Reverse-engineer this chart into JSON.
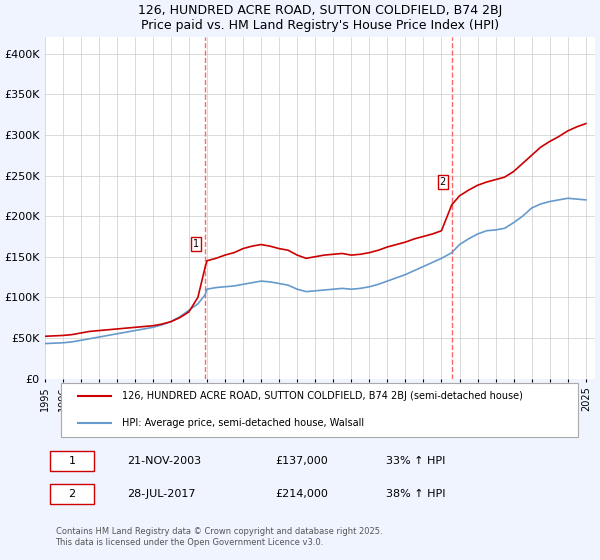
{
  "title_line1": "126, HUNDRED ACRE ROAD, SUTTON COLDFIELD, B74 2BJ",
  "title_line2": "Price paid vs. HM Land Registry's House Price Index (HPI)",
  "ylabel": "",
  "xlim_start": 1995.0,
  "xlim_end": 2025.5,
  "ylim_min": 0,
  "ylim_max": 420000,
  "yticks": [
    0,
    50000,
    100000,
    150000,
    200000,
    250000,
    300000,
    350000,
    400000
  ],
  "ytick_labels": [
    "£0",
    "£50K",
    "£100K",
    "£150K",
    "£200K",
    "£250K",
    "£300K",
    "£350K",
    "£400K"
  ],
  "background_color": "#f0f4ff",
  "plot_bg_color": "#ffffff",
  "red_line_color": "#cc0000",
  "blue_line_color": "#6699cc",
  "vline_color": "#ff6666",
  "purchase1_x": 2003.9,
  "purchase1_y": 137000,
  "purchase1_label": "1",
  "purchase2_x": 2017.57,
  "purchase2_y": 214000,
  "purchase2_label": "2",
  "legend_label_red": "126, HUNDRED ACRE ROAD, SUTTON COLDFIELD, B74 2BJ (semi-detached house)",
  "legend_label_blue": "HPI: Average price, semi-detached house, Walsall",
  "annotation1_box_label": "1",
  "annotation1_date": "21-NOV-2003",
  "annotation1_price": "£137,000",
  "annotation1_hpi": "33% ↑ HPI",
  "annotation2_box_label": "2",
  "annotation2_date": "28-JUL-2017",
  "annotation2_price": "£214,000",
  "annotation2_hpi": "38% ↑ HPI",
  "footer": "Contains HM Land Registry data © Crown copyright and database right 2025.\nThis data is licensed under the Open Government Licence v3.0.",
  "red_x": [
    1995.0,
    1995.5,
    1996.0,
    1996.5,
    1997.0,
    1997.5,
    1998.0,
    1998.5,
    1999.0,
    1999.5,
    2000.0,
    2000.5,
    2001.0,
    2001.5,
    2002.0,
    2002.5,
    2003.0,
    2003.5,
    2003.9,
    2004.0,
    2004.5,
    2005.0,
    2005.5,
    2006.0,
    2006.5,
    2007.0,
    2007.5,
    2008.0,
    2008.5,
    2009.0,
    2009.5,
    2010.0,
    2010.5,
    2011.0,
    2011.5,
    2012.0,
    2012.5,
    2013.0,
    2013.5,
    2014.0,
    2014.5,
    2015.0,
    2015.5,
    2016.0,
    2016.5,
    2017.0,
    2017.57,
    2018.0,
    2018.5,
    2019.0,
    2019.5,
    2020.0,
    2020.5,
    2021.0,
    2021.5,
    2022.0,
    2022.5,
    2023.0,
    2023.5,
    2024.0,
    2024.5,
    2025.0
  ],
  "red_y": [
    52000,
    52500,
    53000,
    54000,
    56000,
    58000,
    59000,
    60000,
    61000,
    62000,
    63000,
    64000,
    65000,
    67000,
    70000,
    75000,
    82000,
    100000,
    137000,
    145000,
    148000,
    152000,
    155000,
    160000,
    163000,
    165000,
    163000,
    160000,
    158000,
    152000,
    148000,
    150000,
    152000,
    153000,
    154000,
    152000,
    153000,
    155000,
    158000,
    162000,
    165000,
    168000,
    172000,
    175000,
    178000,
    182000,
    214000,
    225000,
    232000,
    238000,
    242000,
    245000,
    248000,
    255000,
    265000,
    275000,
    285000,
    292000,
    298000,
    305000,
    310000,
    314000
  ],
  "blue_x": [
    1995.0,
    1995.5,
    1996.0,
    1996.5,
    1997.0,
    1997.5,
    1998.0,
    1998.5,
    1999.0,
    1999.5,
    2000.0,
    2000.5,
    2001.0,
    2001.5,
    2002.0,
    2002.5,
    2003.0,
    2003.5,
    2003.9,
    2004.0,
    2004.5,
    2005.0,
    2005.5,
    2006.0,
    2006.5,
    2007.0,
    2007.5,
    2008.0,
    2008.5,
    2009.0,
    2009.5,
    2010.0,
    2010.5,
    2011.0,
    2011.5,
    2012.0,
    2012.5,
    2013.0,
    2013.5,
    2014.0,
    2014.5,
    2015.0,
    2015.5,
    2016.0,
    2016.5,
    2017.0,
    2017.57,
    2018.0,
    2018.5,
    2019.0,
    2019.5,
    2020.0,
    2020.5,
    2021.0,
    2021.5,
    2022.0,
    2022.5,
    2023.0,
    2023.5,
    2024.0,
    2024.5,
    2025.0
  ],
  "blue_y": [
    43000,
    43500,
    44000,
    45000,
    47000,
    49000,
    51000,
    53000,
    55000,
    57000,
    59000,
    61000,
    63000,
    66000,
    70000,
    76000,
    84000,
    92000,
    103000,
    110000,
    112000,
    113000,
    114000,
    116000,
    118000,
    120000,
    119000,
    117000,
    115000,
    110000,
    107000,
    108000,
    109000,
    110000,
    111000,
    110000,
    111000,
    113000,
    116000,
    120000,
    124000,
    128000,
    133000,
    138000,
    143000,
    148000,
    155000,
    165000,
    172000,
    178000,
    182000,
    183000,
    185000,
    192000,
    200000,
    210000,
    215000,
    218000,
    220000,
    222000,
    221000,
    220000
  ]
}
